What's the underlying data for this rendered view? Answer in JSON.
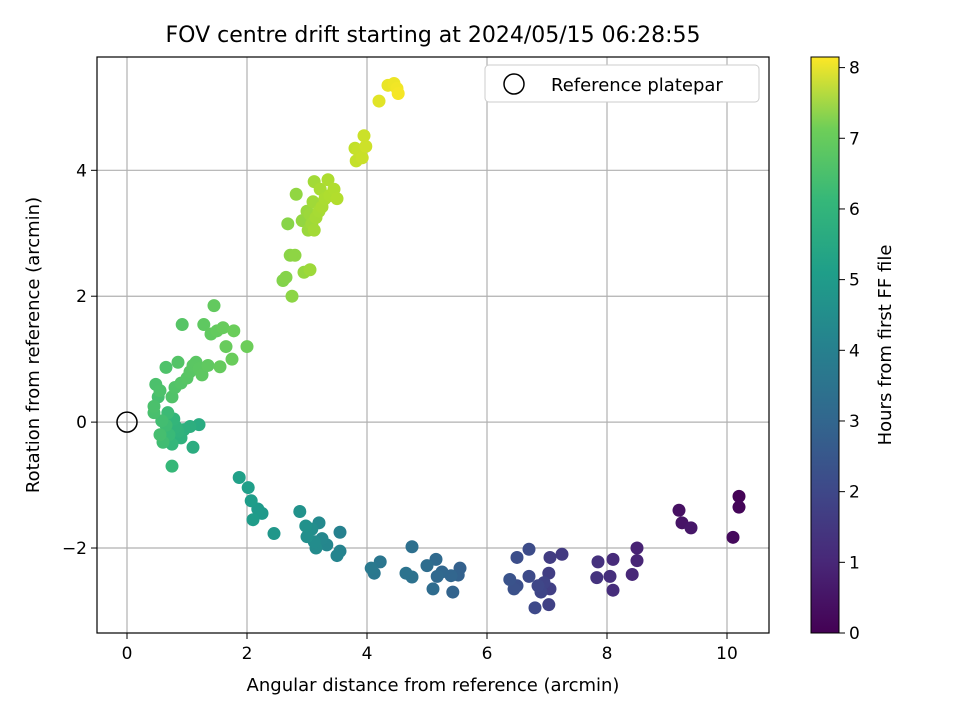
{
  "chart_data": {
    "type": "scatter",
    "title": "FOV centre drift starting at 2024/05/15 06:28:55",
    "xlabel": "Angular distance from reference (arcmin)",
    "ylabel": "Rotation from reference (arcmin)",
    "xlim": [
      -0.5,
      10.7
    ],
    "ylim": [
      -3.35,
      5.8
    ],
    "xticks": [
      0,
      2,
      4,
      6,
      8,
      10
    ],
    "yticks": [
      -2,
      0,
      2,
      4
    ],
    "grid": true,
    "colormap": "viridis",
    "colorbar": {
      "label": "Hours from first FF file",
      "min": 0,
      "max": 8.15,
      "ticks": [
        0,
        1,
        2,
        3,
        4,
        5,
        6,
        7,
        8
      ]
    },
    "legend": {
      "placement": "top-right",
      "entries": [
        {
          "label": "Reference platepar",
          "marker": "open-circle"
        }
      ]
    },
    "reference_point": {
      "x": 0,
      "y": 0
    },
    "points": [
      [
        10.2,
        -1.18,
        0.05
      ],
      [
        10.2,
        -1.35,
        0.1
      ],
      [
        10.1,
        -1.83,
        0.2
      ],
      [
        9.2,
        -1.4,
        0.35
      ],
      [
        9.25,
        -1.6,
        0.45
      ],
      [
        9.4,
        -1.68,
        0.5
      ],
      [
        8.5,
        -2.0,
        0.8
      ],
      [
        8.5,
        -2.2,
        0.85
      ],
      [
        8.42,
        -2.42,
        0.9
      ],
      [
        8.1,
        -2.18,
        1.0
      ],
      [
        8.1,
        -2.67,
        1.05
      ],
      [
        8.05,
        -2.45,
        1.1
      ],
      [
        7.85,
        -2.22,
        1.15
      ],
      [
        7.83,
        -2.47,
        1.2
      ],
      [
        7.25,
        -2.1,
        1.4
      ],
      [
        7.05,
        -2.15,
        1.45
      ],
      [
        7.03,
        -2.4,
        1.5
      ],
      [
        7.05,
        -2.65,
        1.55
      ],
      [
        7.03,
        -2.9,
        1.6
      ],
      [
        6.95,
        -2.55,
        1.65
      ],
      [
        6.9,
        -2.7,
        1.7
      ],
      [
        6.85,
        -2.6,
        1.75
      ],
      [
        6.8,
        -2.95,
        1.8
      ],
      [
        6.7,
        -2.45,
        1.85
      ],
      [
        6.7,
        -2.02,
        1.9
      ],
      [
        6.5,
        -2.15,
        1.95
      ],
      [
        6.5,
        -2.6,
        2.0
      ],
      [
        6.45,
        -2.65,
        2.05
      ],
      [
        6.38,
        -2.5,
        2.1
      ],
      [
        5.55,
        -2.32,
        2.5
      ],
      [
        5.52,
        -2.43,
        2.55
      ],
      [
        5.43,
        -2.7,
        2.6
      ],
      [
        5.4,
        -2.44,
        2.65
      ],
      [
        5.25,
        -2.38,
        2.7
      ],
      [
        5.17,
        -2.45,
        2.75
      ],
      [
        5.15,
        -2.18,
        2.8
      ],
      [
        5.1,
        -2.65,
        2.85
      ],
      [
        5.0,
        -2.28,
        2.9
      ],
      [
        4.75,
        -1.98,
        3.0
      ],
      [
        4.75,
        -2.46,
        3.05
      ],
      [
        4.65,
        -2.4,
        3.1
      ],
      [
        4.22,
        -2.22,
        3.2
      ],
      [
        4.12,
        -2.4,
        3.25
      ],
      [
        4.07,
        -2.32,
        3.3
      ],
      [
        3.55,
        -1.75,
        3.6
      ],
      [
        3.55,
        -2.05,
        3.65
      ],
      [
        3.5,
        -2.12,
        3.7
      ],
      [
        3.33,
        -1.95,
        3.75
      ],
      [
        3.25,
        -1.85,
        3.8
      ],
      [
        3.2,
        -1.6,
        3.85
      ],
      [
        3.15,
        -2.0,
        3.9
      ],
      [
        3.12,
        -1.9,
        3.95
      ],
      [
        3.08,
        -1.7,
        4.0
      ],
      [
        3.0,
        -1.82,
        4.05
      ],
      [
        2.98,
        -1.65,
        4.1
      ],
      [
        2.88,
        -1.42,
        4.15
      ],
      [
        2.45,
        -1.77,
        4.3
      ],
      [
        2.25,
        -1.45,
        4.35
      ],
      [
        2.18,
        -1.38,
        4.4
      ],
      [
        2.1,
        -1.55,
        4.45
      ],
      [
        2.07,
        -1.25,
        4.5
      ],
      [
        2.02,
        -1.04,
        4.55
      ],
      [
        1.87,
        -0.88,
        4.6
      ],
      [
        1.2,
        -0.04,
        5.0
      ],
      [
        1.1,
        -0.4,
        5.05
      ],
      [
        1.05,
        -0.07,
        5.1
      ],
      [
        0.95,
        -0.12,
        5.15
      ],
      [
        0.9,
        -0.25,
        5.2
      ],
      [
        0.85,
        -0.15,
        5.25
      ],
      [
        0.82,
        -0.08,
        5.3
      ],
      [
        0.78,
        0.05,
        5.35
      ],
      [
        0.75,
        -0.35,
        5.4
      ],
      [
        0.75,
        -0.7,
        5.45
      ],
      [
        0.7,
        -0.2,
        5.5
      ],
      [
        0.68,
        0.15,
        5.55
      ],
      [
        0.65,
        -0.05,
        5.6
      ],
      [
        0.6,
        -0.32,
        5.62
      ],
      [
        0.58,
        0.02,
        5.65
      ],
      [
        0.55,
        -0.2,
        5.7
      ],
      [
        0.52,
        0.4,
        5.72
      ],
      [
        0.45,
        0.15,
        5.75
      ],
      [
        0.45,
        0.25,
        5.78
      ],
      [
        0.48,
        0.6,
        5.8
      ],
      [
        0.55,
        0.5,
        5.82
      ],
      [
        0.65,
        0.87,
        5.85
      ],
      [
        0.75,
        0.4,
        5.88
      ],
      [
        0.8,
        0.55,
        5.9
      ],
      [
        0.85,
        0.95,
        5.92
      ],
      [
        0.9,
        0.62,
        5.94
      ],
      [
        0.92,
        1.55,
        5.96
      ],
      [
        1.0,
        0.7,
        5.98
      ],
      [
        1.05,
        0.8,
        6.0
      ],
      [
        1.1,
        0.9,
        6.02
      ],
      [
        1.15,
        0.95,
        6.04
      ],
      [
        1.2,
        0.85,
        6.06
      ],
      [
        1.25,
        0.75,
        6.08
      ],
      [
        1.28,
        1.55,
        6.1
      ],
      [
        1.35,
        0.9,
        6.12
      ],
      [
        1.4,
        1.4,
        6.14
      ],
      [
        1.45,
        1.85,
        6.16
      ],
      [
        1.5,
        1.45,
        6.18
      ],
      [
        1.55,
        0.88,
        6.2
      ],
      [
        1.6,
        1.5,
        6.22
      ],
      [
        1.65,
        1.2,
        6.24
      ],
      [
        1.75,
        1.0,
        6.26
      ],
      [
        1.78,
        1.45,
        6.28
      ],
      [
        2.0,
        1.2,
        6.3
      ],
      [
        2.6,
        2.25,
        6.6
      ],
      [
        2.65,
        2.3,
        6.63
      ],
      [
        2.68,
        3.15,
        6.66
      ],
      [
        2.72,
        2.65,
        6.69
      ],
      [
        2.75,
        2.0,
        6.72
      ],
      [
        2.8,
        2.65,
        6.75
      ],
      [
        2.82,
        3.62,
        6.78
      ],
      [
        2.92,
        3.2,
        6.81
      ],
      [
        2.95,
        2.38,
        6.84
      ],
      [
        3.0,
        3.35,
        6.87
      ],
      [
        3.02,
        3.05,
        6.9
      ],
      [
        3.05,
        3.3,
        6.92
      ],
      [
        3.05,
        2.42,
        6.94
      ],
      [
        3.08,
        3.15,
        6.96
      ],
      [
        3.1,
        3.5,
        6.98
      ],
      [
        3.12,
        3.82,
        7.0
      ],
      [
        3.12,
        3.05,
        7.02
      ],
      [
        3.15,
        3.25,
        7.04
      ],
      [
        3.2,
        3.35,
        7.06
      ],
      [
        3.22,
        3.7,
        7.08
      ],
      [
        3.25,
        3.42,
        7.1
      ],
      [
        3.3,
        3.55,
        7.12
      ],
      [
        3.35,
        3.85,
        7.14
      ],
      [
        3.38,
        3.6,
        7.16
      ],
      [
        3.45,
        3.7,
        7.18
      ],
      [
        3.5,
        3.55,
        7.2
      ],
      [
        3.8,
        4.35,
        7.4
      ],
      [
        3.82,
        4.15,
        7.43
      ],
      [
        3.85,
        4.32,
        7.46
      ],
      [
        3.92,
        4.2,
        7.49
      ],
      [
        3.95,
        4.55,
        7.52
      ],
      [
        3.98,
        4.38,
        7.55
      ],
      [
        4.2,
        5.1,
        7.8
      ],
      [
        4.35,
        5.35,
        7.9
      ],
      [
        4.45,
        5.38,
        7.95
      ],
      [
        4.5,
        5.3,
        8.0
      ],
      [
        4.52,
        5.22,
        8.05
      ]
    ]
  },
  "colors": {
    "grid": "#b0b0b0",
    "axes": "#000000",
    "background": "#ffffff"
  }
}
